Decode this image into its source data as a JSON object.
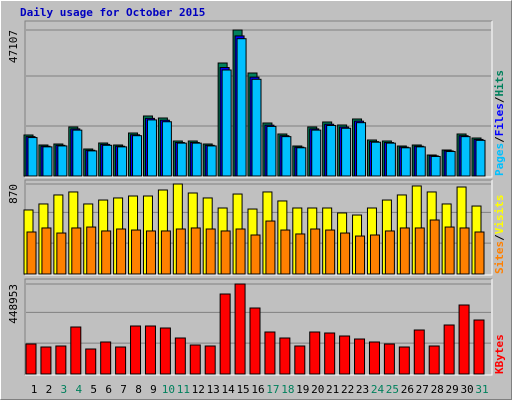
{
  "chart_data": [
    {
      "type": "bar",
      "title": "Daily usage for October 2015",
      "ylim": [
        0,
        47107
      ],
      "yticks": [
        {
          "value": 16132,
          "label": null
        },
        {
          "value": 32265,
          "label": null
        },
        47107
      ],
      "separator": "/",
      "series": [
        {
          "name": "Hits",
          "color": "#00805c",
          "values": [
            13229,
            10002,
            10325,
            15810,
            8712,
            10648,
            10002,
            13874,
            19359,
            18714,
            11293,
            11293,
            10325,
            36460,
            47107,
            33234,
            17101,
            13552,
            9680,
            15810,
            17424,
            16455,
            18392,
            11616,
            11293,
            9680,
            10002,
            6776,
            8389,
            13552,
            12261
          ]
        },
        {
          "name": "Files",
          "color": "#0000ff",
          "values": [
            12700,
            9600,
            9900,
            15200,
            8300,
            10200,
            9600,
            13300,
            18600,
            18000,
            10800,
            10800,
            9900,
            35000,
            45200,
            31900,
            16400,
            13000,
            9300,
            15200,
            16700,
            15800,
            17700,
            11100,
            10800,
            9300,
            9600,
            6500,
            8100,
            13000,
            11800
          ]
        },
        {
          "name": "Pages",
          "color": "#00c0ff",
          "values": [
            12400,
            9400,
            9700,
            14800,
            8100,
            9900,
            9400,
            13000,
            18100,
            17500,
            10600,
            10600,
            9700,
            34200,
            44300,
            31200,
            16000,
            12700,
            9100,
            14800,
            16300,
            15400,
            17200,
            10900,
            10600,
            9100,
            9400,
            6300,
            7900,
            12700,
            11500
          ]
        }
      ]
    },
    {
      "type": "bar",
      "ylim": [
        0,
        870
      ],
      "yticks": [
        {
          "value": 298,
          "label": null
        },
        {
          "value": 596,
          "label": null
        },
        870
      ],
      "separator": "/",
      "series": [
        {
          "name": "Visits",
          "color": "#ffff00",
          "values": [
            619,
            677,
            764,
            793,
            677,
            715,
            735,
            754,
            754,
            812,
            870,
            783,
            735,
            638,
            773,
            628,
            793,
            706,
            638,
            638,
            638,
            590,
            570,
            638,
            715,
            764,
            851,
            793,
            677,
            841,
            657
          ]
        },
        {
          "name": "Sites",
          "color": "#ff8000",
          "values": [
            406,
            445,
            396,
            445,
            454,
            416,
            435,
            425,
            416,
            416,
            435,
            445,
            435,
            416,
            435,
            377,
            512,
            425,
            387,
            435,
            425,
            396,
            367,
            377,
            416,
            445,
            445,
            522,
            454,
            445,
            406
          ]
        }
      ]
    },
    {
      "type": "bar",
      "ylim": [
        0,
        448953
      ],
      "yticks": [
        {
          "value": 153751,
          "label": null
        },
        {
          "value": 307502,
          "label": null
        },
        448953
      ],
      "categories": [
        "1",
        "2",
        "3",
        "4",
        "5",
        "6",
        "7",
        "8",
        "9",
        "10",
        "11",
        "12",
        "13",
        "14",
        "15",
        "16",
        "17",
        "18",
        "19",
        "20",
        "21",
        "22",
        "23",
        "24",
        "25",
        "26",
        "27",
        "28",
        "29",
        "30",
        "31"
      ],
      "category_colors": [
        "#000000",
        "#000000",
        "#00805c",
        "#00805c",
        "#000000",
        "#000000",
        "#000000",
        "#000000",
        "#000000",
        "#00805c",
        "#00805c",
        "#000000",
        "#000000",
        "#000000",
        "#000000",
        "#000000",
        "#00805c",
        "#00805c",
        "#000000",
        "#000000",
        "#000000",
        "#000000",
        "#000000",
        "#00805c",
        "#00805c",
        "#000000",
        "#000000",
        "#000000",
        "#000000",
        "#000000",
        "#00805c"
      ],
      "series": [
        {
          "name": "KBytes",
          "color": "#ff0000",
          "values": [
            149651,
            134686,
            139675,
            234455,
            124710,
            159629,
            134686,
            239443,
            239443,
            229466,
            179581,
            144663,
            139675,
            399069,
            448953,
            329234,
            209514,
            179581,
            139675,
            209514,
            204525,
            189559,
            174594,
            159629,
            149651,
            134686,
            219490,
            139675,
            244430,
            344197,
            269374
          ]
        }
      ]
    }
  ]
}
